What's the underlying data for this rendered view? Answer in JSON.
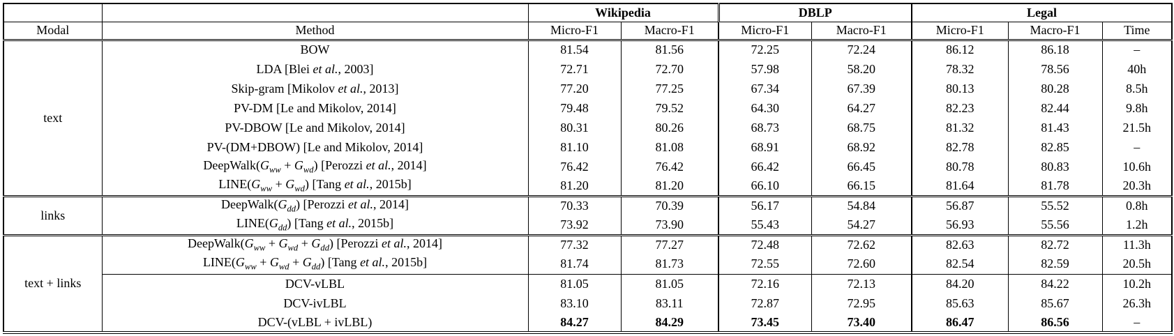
{
  "table": {
    "group_headers": [
      "Wikipedia",
      "DBLP",
      "Legal"
    ],
    "column_headers": [
      "Modal",
      "Method",
      "Micro-F1",
      "Macro-F1",
      "Micro-F1",
      "Macro-F1",
      "Micro-F1",
      "Macro-F1",
      "Time"
    ],
    "missing_value_symbol": "–",
    "groups": [
      {
        "modal": "text",
        "rows": [
          {
            "method": "BOW",
            "values": [
              "81.54",
              "81.56",
              "72.25",
              "72.24",
              "86.12",
              "86.18"
            ],
            "time": "–",
            "bold": false
          },
          {
            "method": "LDA [Blei *et al.*, 2003]",
            "values": [
              "72.71",
              "72.70",
              "57.98",
              "58.20",
              "78.32",
              "78.56"
            ],
            "time": "40h",
            "bold": false
          },
          {
            "method": "Skip-gram [Mikolov *et al.*, 2013]",
            "values": [
              "77.20",
              "77.25",
              "67.34",
              "67.39",
              "80.13",
              "80.28"
            ],
            "time": "8.5h",
            "bold": false
          },
          {
            "method": "PV-DM [Le and Mikolov, 2014]",
            "values": [
              "79.48",
              "79.52",
              "64.30",
              "64.27",
              "82.23",
              "82.44"
            ],
            "time": "9.8h",
            "bold": false
          },
          {
            "method": "PV-DBOW [Le and Mikolov, 2014]",
            "values": [
              "80.31",
              "80.26",
              "68.73",
              "68.75",
              "81.32",
              "81.43"
            ],
            "time": "21.5h",
            "bold": false
          },
          {
            "method": "PV-(DM+DBOW) [Le and Mikolov, 2014]",
            "values": [
              "81.10",
              "81.08",
              "68.91",
              "68.92",
              "82.78",
              "82.85"
            ],
            "time": "–",
            "bold": false
          },
          {
            "method": "DeepWalk(*G*_{ww} + *G*_{wd}) [Perozzi *et al.*, 2014]",
            "values": [
              "76.42",
              "76.42",
              "66.42",
              "66.45",
              "80.78",
              "80.83"
            ],
            "time": "10.6h",
            "bold": false
          },
          {
            "method": "LINE(*G*_{ww} + *G*_{wd}) [Tang *et al.*, 2015b]",
            "values": [
              "81.20",
              "81.20",
              "66.10",
              "66.15",
              "81.64",
              "81.78"
            ],
            "time": "20.3h",
            "bold": false
          }
        ]
      },
      {
        "modal": "links",
        "rows": [
          {
            "method": "DeepWalk(*G*_{dd}) [Perozzi *et al.*, 2014]",
            "values": [
              "70.33",
              "70.39",
              "56.17",
              "54.84",
              "56.87",
              "55.52"
            ],
            "time": "0.8h",
            "bold": false
          },
          {
            "method": "LINE(*G*_{dd}) [Tang *et al.*, 2015b]",
            "values": [
              "73.92",
              "73.90",
              "55.43",
              "54.27",
              "56.93",
              "55.56"
            ],
            "time": "1.2h",
            "bold": false
          }
        ]
      },
      {
        "modal": "text + links",
        "cline_before": 2,
        "rows": [
          {
            "method": "DeepWalk(*G*_{ww} + *G*_{wd} + *G*_{dd}) [Perozzi *et al.*, 2014]",
            "values": [
              "77.32",
              "77.27",
              "72.48",
              "72.62",
              "82.63",
              "82.72"
            ],
            "time": "11.3h",
            "bold": false
          },
          {
            "method": "LINE(*G*_{ww} + *G*_{wd} + *G*_{dd}) [Tang *et al.*, 2015b]",
            "values": [
              "81.74",
              "81.73",
              "72.55",
              "72.60",
              "82.54",
              "82.59"
            ],
            "time": "20.5h",
            "bold": false
          },
          {
            "method": "DCV-vLBL",
            "values": [
              "81.05",
              "81.05",
              "72.16",
              "72.13",
              "84.20",
              "84.22"
            ],
            "time": "10.2h",
            "bold": false
          },
          {
            "method": "DCV-ivLBL",
            "values": [
              "83.10",
              "83.11",
              "72.87",
              "72.95",
              "85.63",
              "85.67"
            ],
            "time": "26.3h",
            "bold": false
          },
          {
            "method": "DCV-(vLBL + ivLBL)",
            "values": [
              "84.27",
              "84.29",
              "73.45",
              "73.40",
              "86.47",
              "86.56"
            ],
            "time": "–",
            "bold": true
          }
        ]
      }
    ]
  }
}
